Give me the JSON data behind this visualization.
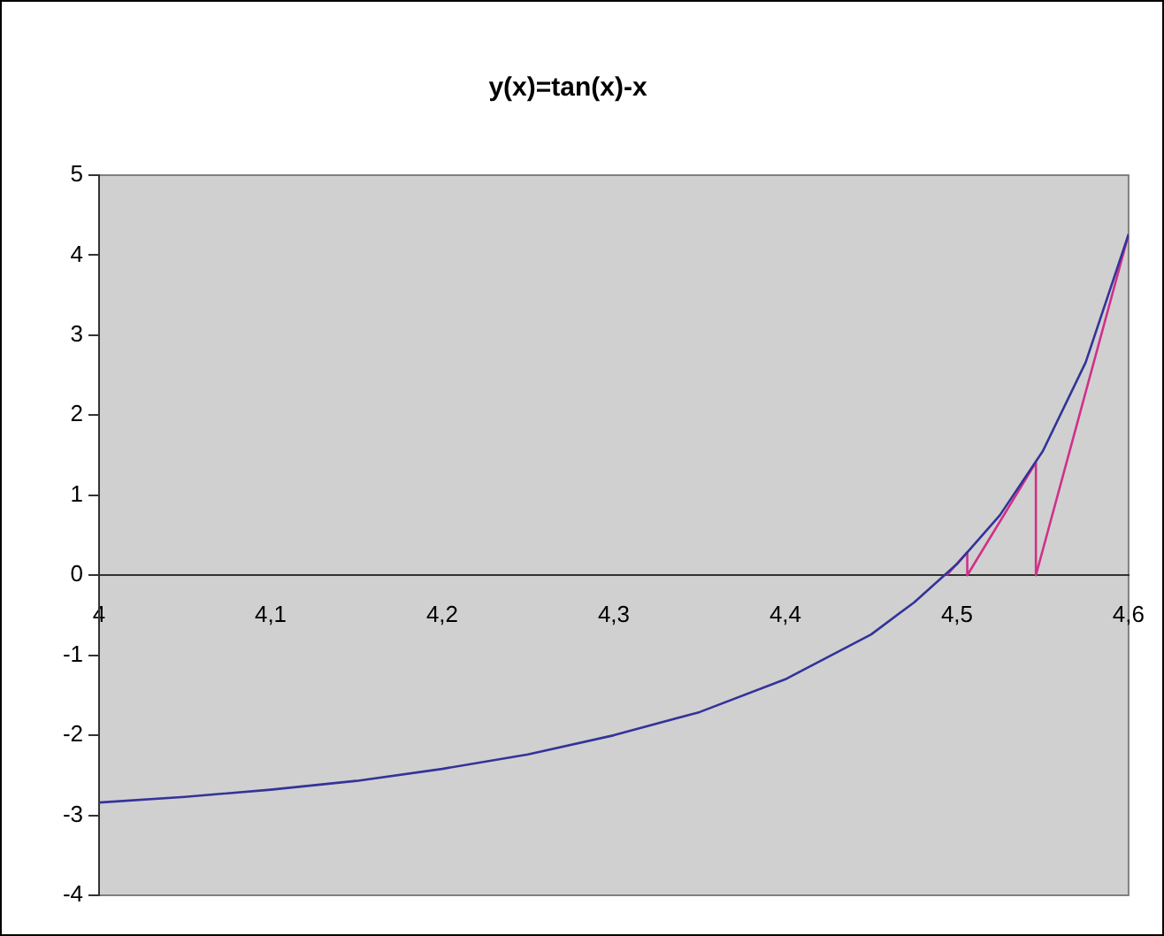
{
  "chart_data": {
    "type": "line",
    "title": "y(x)=tan(x)-x",
    "xlim": [
      4,
      4.6
    ],
    "xticks": [
      {
        "value": 4,
        "label": "4"
      },
      {
        "value": 4.1,
        "label": "4,1"
      },
      {
        "value": 4.2,
        "label": "4,2"
      },
      {
        "value": 4.3,
        "label": "4,3"
      },
      {
        "value": 4.4,
        "label": "4,4"
      },
      {
        "value": 4.5,
        "label": "4,5"
      },
      {
        "value": 4.6,
        "label": "4,6"
      }
    ],
    "ylim": [
      -4,
      5
    ],
    "yticks": [
      -4,
      -3,
      -2,
      -1,
      0,
      1,
      2,
      3,
      4,
      5
    ],
    "grid": false,
    "legend": false,
    "marker": "none",
    "line_style": "solid",
    "series": [
      {
        "type": "line",
        "color": "#33339a",
        "x": [
          4,
          4.05,
          4.1,
          4.15,
          4.2,
          4.25,
          4.3,
          4.35,
          4.4,
          4.45,
          4.475,
          4.5,
          4.525,
          4.55,
          4.575,
          4.6
        ],
        "values": [
          -2.84,
          -2.77,
          -2.68,
          -2.57,
          -2.42,
          -2.24,
          -2.0,
          -1.71,
          -1.3,
          -0.74,
          -0.34,
          0.14,
          0.75,
          1.55,
          2.66,
          4.26
        ]
      },
      {
        "type": "line",
        "color": "#d0308a",
        "x": [
          4.6,
          4.546,
          4.546,
          4.506,
          4.506,
          4.494
        ],
        "values": [
          4.26,
          0,
          1.41,
          0,
          0.29,
          0
        ]
      }
    ]
  }
}
